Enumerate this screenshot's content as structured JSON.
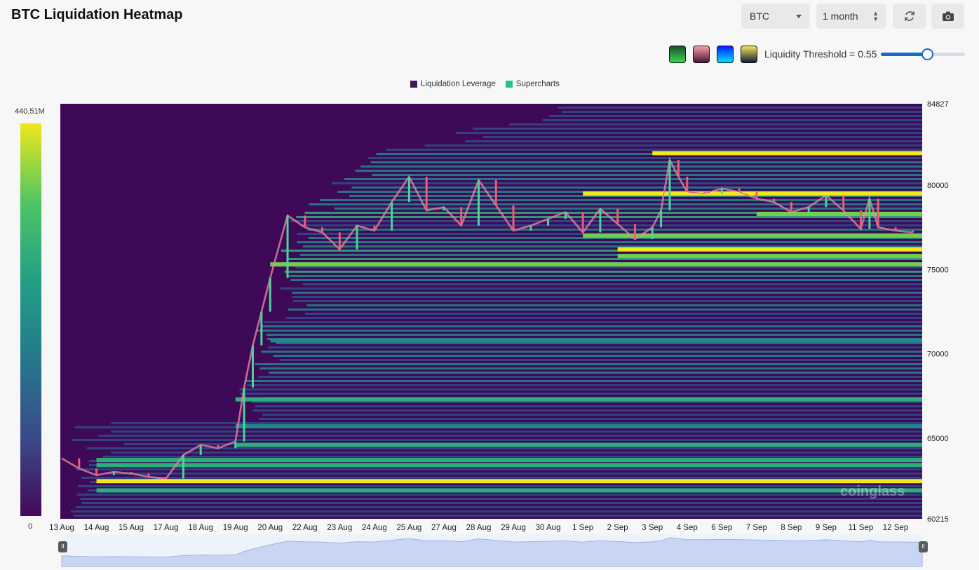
{
  "header": {
    "title": "BTC Liquidation Heatmap",
    "symbol": "BTC",
    "range": "1 month"
  },
  "toolbar": {
    "refresh_icon": "refresh-icon",
    "camera_icon": "camera-icon",
    "swatches": [
      {
        "name": "green-yellow",
        "from": "#1c4e2e",
        "to": "#39d84a"
      },
      {
        "name": "pink-purple",
        "from": "#f4a0a8",
        "to": "#4a1436"
      },
      {
        "name": "blue",
        "from": "#0a1cff",
        "to": "#00e0ff"
      },
      {
        "name": "yellow-navy",
        "from": "#f5e45a",
        "to": "#0d1f3a"
      }
    ],
    "threshold_label": "Liquidity Threshold = 0.55",
    "threshold_value": 0.55
  },
  "legend": [
    {
      "label": "Liquidation Leverage",
      "color": "#44165e"
    },
    {
      "label": "Supercharts",
      "color": "#22c48a"
    }
  ],
  "colorbar": {
    "max_label": "440.51M",
    "min_label": "0",
    "colors": [
      "#f0e81a",
      "#4fc564",
      "#22a085",
      "#26788c",
      "#3a4a8a",
      "#440a5a"
    ]
  },
  "watermark": "coinglass",
  "chart_data": {
    "type": "heatmap",
    "title": "BTC Liquidation Heatmap",
    "x_tick_labels": [
      "13 Aug",
      "14 Aug",
      "15 Aug",
      "17 Aug",
      "18 Aug",
      "19 Aug",
      "20 Aug",
      "22 Aug",
      "23 Aug",
      "24 Aug",
      "25 Aug",
      "27 Aug",
      "28 Aug",
      "29 Aug",
      "30 Aug",
      "1 Sep",
      "2 Sep",
      "3 Sep",
      "4 Sep",
      "6 Sep",
      "7 Sep",
      "8 Sep",
      "9 Sep",
      "11 Sep",
      "12 Sep"
    ],
    "y_tick_labels": [
      "84827",
      "80000",
      "75000",
      "70000",
      "65000",
      "60215"
    ],
    "ylim": [
      60215,
      84827
    ],
    "colorbar_range": [
      "0",
      "440.51M"
    ],
    "price_close": [
      [
        "13 Aug",
        63800
      ],
      [
        "13 Aug 12:00",
        63200
      ],
      [
        "14 Aug",
        62800
      ],
      [
        "14 Aug 12:00",
        63000
      ],
      [
        "15 Aug",
        62900
      ],
      [
        "15 Aug 12:00",
        62700
      ],
      [
        "17 Aug",
        62600
      ],
      [
        "17 Aug 12:00",
        64000
      ],
      [
        "18 Aug",
        64600
      ],
      [
        "18 Aug 12:00",
        64400
      ],
      [
        "19 Aug",
        64800
      ],
      [
        "19 Aug 06:00",
        68000
      ],
      [
        "19 Aug 12:00",
        70500
      ],
      [
        "19 Aug 18:00",
        72500
      ],
      [
        "20 Aug",
        74500
      ],
      [
        "20 Aug 12:00",
        78200
      ],
      [
        "22 Aug",
        77500
      ],
      [
        "22 Aug 12:00",
        77200
      ],
      [
        "23 Aug",
        76200
      ],
      [
        "23 Aug 12:00",
        77600
      ],
      [
        "24 Aug",
        77300
      ],
      [
        "24 Aug 12:00",
        79000
      ],
      [
        "25 Aug",
        80500
      ],
      [
        "25 Aug 12:00",
        78500
      ],
      [
        "27 Aug",
        78700
      ],
      [
        "27 Aug 12:00",
        77600
      ],
      [
        "28 Aug",
        80300
      ],
      [
        "28 Aug 12:00",
        78800
      ],
      [
        "29 Aug",
        77300
      ],
      [
        "29 Aug 12:00",
        77600
      ],
      [
        "30 Aug",
        78000
      ],
      [
        "30 Aug 12:00",
        78400
      ],
      [
        "1 Sep",
        77200
      ],
      [
        "1 Sep 12:00",
        78600
      ],
      [
        "2 Sep",
        77700
      ],
      [
        "2 Sep 12:00",
        76800
      ],
      [
        "3 Sep",
        77500
      ],
      [
        "3 Sep 06:00",
        78500
      ],
      [
        "3 Sep 12:00",
        81500
      ],
      [
        "3 Sep 18:00",
        80500
      ],
      [
        "4 Sep",
        79600
      ],
      [
        "4 Sep 12:00",
        79500
      ],
      [
        "6 Sep",
        79800
      ],
      [
        "6 Sep 12:00",
        79600
      ],
      [
        "7 Sep",
        79200
      ],
      [
        "7 Sep 12:00",
        79000
      ],
      [
        "8 Sep",
        78400
      ],
      [
        "8 Sep 12:00",
        78700
      ],
      [
        "9 Sep",
        79400
      ],
      [
        "9 Sep 12:00",
        78500
      ],
      [
        "11 Sep",
        77400
      ],
      [
        "11 Sep 06:00",
        79200
      ],
      [
        "11 Sep 12:00",
        77500
      ],
      [
        "12 Sep",
        77300
      ],
      [
        "12 Sep 12:00",
        77200
      ]
    ],
    "liquidation_levels": [
      {
        "price": 62450,
        "intensity": 1.0,
        "from": "14 Aug"
      },
      {
        "price": 61900,
        "intensity": 0.6,
        "from": "14 Aug"
      },
      {
        "price": 63400,
        "intensity": 0.55,
        "from": "14 Aug"
      },
      {
        "price": 63700,
        "intensity": 0.5,
        "from": "14 Aug"
      },
      {
        "price": 64600,
        "intensity": 0.55,
        "from": "19 Aug"
      },
      {
        "price": 65700,
        "intensity": 0.45,
        "from": "19 Aug"
      },
      {
        "price": 67300,
        "intensity": 0.55,
        "from": "19 Aug"
      },
      {
        "price": 70800,
        "intensity": 0.45,
        "from": "20 Aug"
      },
      {
        "price": 75300,
        "intensity": 0.75,
        "from": "20 Aug"
      },
      {
        "price": 75800,
        "intensity": 0.85,
        "from": "2 Sep"
      },
      {
        "price": 76200,
        "intensity": 1.0,
        "from": "2 Sep"
      },
      {
        "price": 81900,
        "intensity": 0.95,
        "from": "3 Sep"
      },
      {
        "price": 79500,
        "intensity": 0.9,
        "from": "1 Sep"
      },
      {
        "price": 78300,
        "intensity": 0.7,
        "from": "7 Sep"
      },
      {
        "price": 77000,
        "intensity": 0.75,
        "from": "1 Sep"
      }
    ]
  }
}
